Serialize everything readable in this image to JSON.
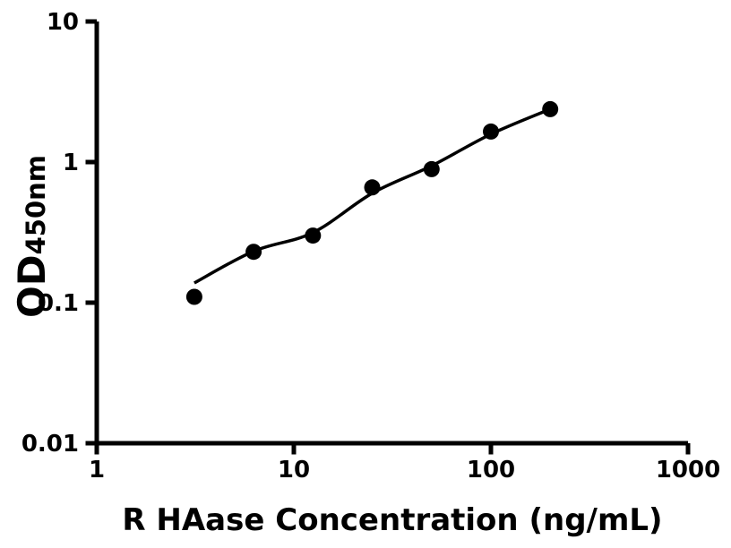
{
  "chart_data": {
    "type": "scatter",
    "title": "",
    "xlabel": "R HAase Concentration (ng/mL)",
    "ylabel_main": "OD",
    "ylabel_sub": "450nm",
    "x_scale": "log",
    "y_scale": "log",
    "xlim": [
      1,
      1000
    ],
    "ylim": [
      0.01,
      10
    ],
    "x_ticks": [
      1,
      10,
      100,
      1000
    ],
    "x_tick_labels": [
      "1",
      "10",
      "100",
      "1000"
    ],
    "y_ticks": [
      0.01,
      0.1,
      1,
      10
    ],
    "y_tick_labels": [
      "0.01",
      "0.1",
      "1",
      "10"
    ],
    "grid": "off",
    "legend": "none",
    "series": [
      {
        "name": "standard-points",
        "type": "scatter",
        "x": [
          3.125,
          6.25,
          12.5,
          25,
          50,
          100,
          200
        ],
        "y": [
          0.11,
          0.23,
          0.3,
          0.66,
          0.89,
          1.65,
          2.38
        ]
      },
      {
        "name": "fit-curve",
        "type": "line",
        "x": [
          3.125,
          6.25,
          12.5,
          25,
          50,
          100,
          200
        ],
        "y": [
          0.138,
          0.232,
          0.315,
          0.6,
          0.94,
          1.58,
          2.38
        ]
      }
    ],
    "colors": {
      "axis": "#000000",
      "marker": "#000000",
      "line": "#000000",
      "background": "#ffffff"
    },
    "marker_diameter_px": 18
  }
}
